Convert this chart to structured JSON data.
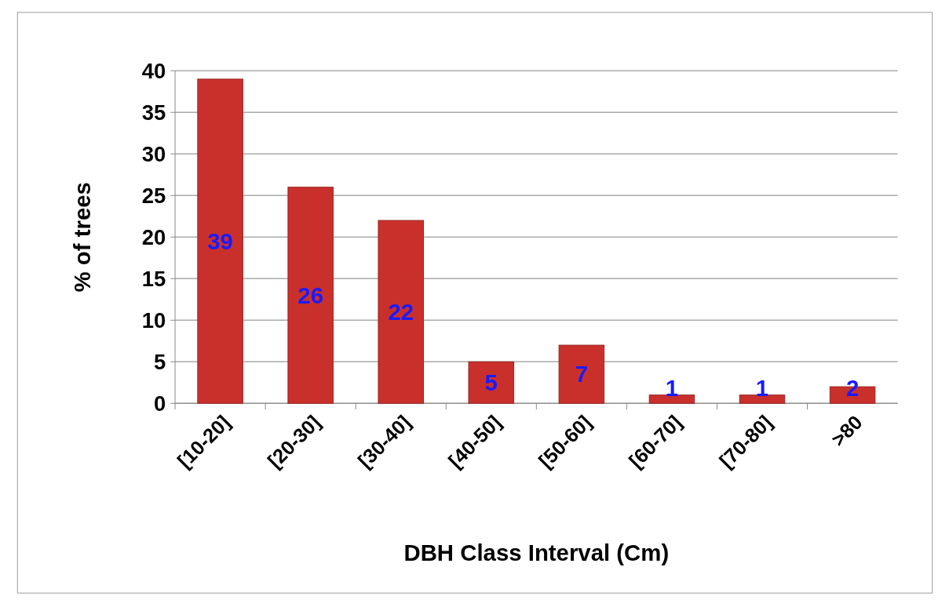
{
  "chart_data": {
    "type": "bar",
    "xlabel": "DBH Class Interval (Cm)",
    "ylabel": "% of trees",
    "categories": [
      "[10-20]",
      "[20-30]",
      "[30-40]",
      "[40-50]",
      "[50-60]",
      "[60-70]",
      "[70-80]",
      ">80"
    ],
    "values": [
      39,
      26,
      22,
      5,
      7,
      1,
      1,
      2
    ],
    "color": "#c9302c",
    "ylim": [
      0,
      40
    ],
    "yticks": [
      0,
      5,
      10,
      15,
      20,
      25,
      30,
      35,
      40
    ],
    "grid": "y",
    "data_labels": true
  }
}
